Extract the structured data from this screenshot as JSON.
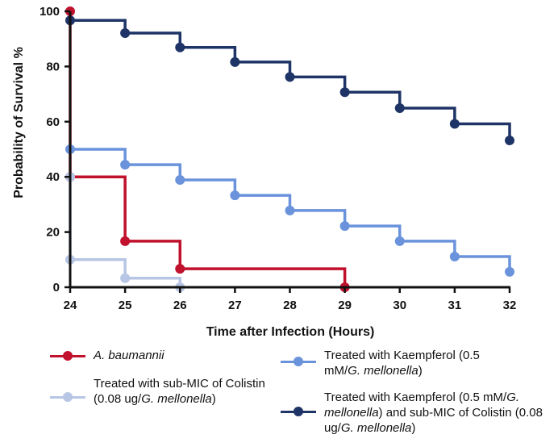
{
  "chart_data": {
    "type": "line",
    "step": true,
    "xlabel": "Time after Infection (Hours)",
    "ylabel": "Probability of Survival %",
    "xlim": [
      24,
      32
    ],
    "ylim": [
      0,
      100
    ],
    "x_ticks": [
      "24",
      "25",
      "26",
      "27",
      "28",
      "29",
      "30",
      "31",
      "32"
    ],
    "y_ticks": [
      "0",
      "20",
      "40",
      "60",
      "80",
      "100"
    ],
    "grid": false,
    "legend_position": "bottom",
    "series": [
      {
        "name": "A. baumannii",
        "color": "#c0112d",
        "points": [
          [
            24,
            100
          ],
          [
            24,
            40
          ],
          [
            25,
            16.7
          ],
          [
            26,
            6.7
          ],
          [
            29,
            0
          ]
        ]
      },
      {
        "name": "Treated with sub-MIC of Colistin (0.08 ug/G. mellonella)",
        "color": "#b7c6e4",
        "points": [
          [
            24,
            40
          ],
          [
            24,
            10
          ],
          [
            25,
            3.3
          ],
          [
            26,
            0
          ]
        ]
      },
      {
        "name": "Treated with Kaempferol (0.5 mM/G. mellonella)",
        "color": "#6a93dc",
        "points": [
          [
            24,
            50
          ],
          [
            25,
            44.4
          ],
          [
            26,
            38.9
          ],
          [
            27,
            33.3
          ],
          [
            28,
            27.8
          ],
          [
            29,
            22.2
          ],
          [
            30,
            16.7
          ],
          [
            31,
            11.1
          ],
          [
            32,
            5.6
          ]
        ]
      },
      {
        "name": "Treated with Kaempferol (0.5 mM/G. mellonella) and sub-MIC of Colistin (0.08 ug/G. mellonella)",
        "color": "#1f3466",
        "points": [
          [
            24,
            96.7
          ],
          [
            25,
            92.1
          ],
          [
            26,
            86.9
          ],
          [
            27,
            81.6
          ],
          [
            28,
            76.2
          ],
          [
            29,
            70.7
          ],
          [
            30,
            64.9
          ],
          [
            31,
            59.2
          ],
          [
            32,
            53.2
          ]
        ]
      }
    ]
  },
  "legend": {
    "ab_pre": "",
    "ab_it": "A. baumannii",
    "col_pre": "Treated with sub-MIC of Colistin (0.08 ug/",
    "col_it": "G. mellonella",
    "col_post": ")",
    "kae_pre": "Treated with Kaempferol (0.5 mM/",
    "kae_it": "G. mellonella",
    "kae_post": ")",
    "combo_pre": "Treated with Kaempferol (0.5 mM/",
    "combo_it1": "G. mellonella",
    "combo_mid": ") and sub-MIC of Colistin (0.08 ug/",
    "combo_it2": "G. mellonella",
    "combo_post": ")"
  }
}
